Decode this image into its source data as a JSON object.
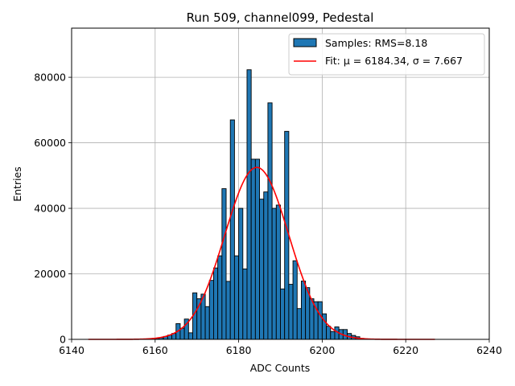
{
  "chart_data": {
    "type": "bar",
    "title": "Run 509, channel099, Pedestal",
    "xlabel": "ADC Counts",
    "ylabel": "Entries",
    "xlim": [
      6140,
      6240
    ],
    "ylim": [
      0,
      95000
    ],
    "xticks": [
      6140,
      6160,
      6180,
      6200,
      6220,
      6240
    ],
    "yticks": [
      0,
      20000,
      40000,
      60000,
      80000
    ],
    "grid": true,
    "legend_position": "top-right",
    "bin_width": 1,
    "histogram": {
      "name": "Samples: RMS=8.18",
      "color": "#1f77b4",
      "bins": [
        6160,
        6161,
        6162,
        6163,
        6164,
        6165,
        6166,
        6167,
        6168,
        6169,
        6170,
        6171,
        6172,
        6173,
        6174,
        6175,
        6176,
        6177,
        6178,
        6179,
        6180,
        6181,
        6182,
        6183,
        6184,
        6185,
        6186,
        6187,
        6188,
        6189,
        6190,
        6191,
        6192,
        6193,
        6194,
        6195,
        6196,
        6197,
        6198,
        6199,
        6200,
        6201,
        6202,
        6203,
        6204,
        6205,
        6206,
        6207,
        6208,
        6209,
        6210
      ],
      "values": [
        300,
        500,
        900,
        1300,
        1800,
        4800,
        3400,
        6200,
        2000,
        14200,
        12400,
        13800,
        10000,
        18000,
        21800,
        25500,
        46000,
        17700,
        67000,
        25500,
        40000,
        21500,
        82300,
        55000,
        55000,
        42800,
        45000,
        72200,
        40000,
        41000,
        15400,
        63500,
        16800,
        24000,
        9400,
        17800,
        15800,
        12400,
        11500,
        11500,
        7800,
        4000,
        2400,
        3800,
        3000,
        3000,
        1800,
        1200,
        800,
        300,
        150
      ]
    },
    "fit": {
      "name": "Fit: μ = 6184.34, σ = 7.667",
      "color": "#ff0000",
      "mu": 6184.34,
      "sigma": 7.667,
      "amplitude": 52500,
      "x_range": [
        6144,
        6227
      ]
    }
  }
}
